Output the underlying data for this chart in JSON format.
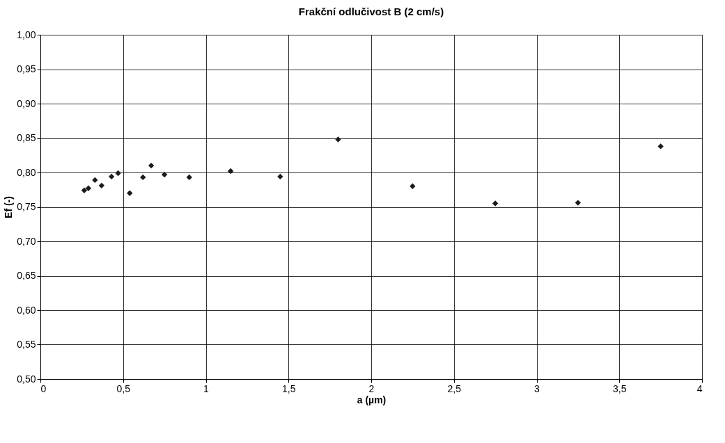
{
  "chart_data": {
    "type": "scatter",
    "title": "Frakční odlučivost B (2 cm/s)",
    "xlabel": "a (µm)",
    "ylabel": "Ef (-)",
    "x": [
      0.265,
      0.29,
      0.33,
      0.37,
      0.43,
      0.47,
      0.54,
      0.62,
      0.67,
      0.75,
      0.9,
      1.15,
      1.45,
      1.8,
      2.25,
      2.75,
      3.25,
      3.75
    ],
    "series": [
      {
        "color": "#1a1a1a",
        "values": [
          0.774,
          0.777,
          0.789,
          0.781,
          0.794,
          0.799,
          0.77,
          0.793,
          0.81,
          0.797,
          0.793,
          0.802,
          0.794,
          0.848,
          0.78,
          0.755,
          0.756,
          0.838
        ]
      }
    ],
    "xlim": [
      0,
      4
    ],
    "xticks": [
      {
        "value": 0,
        "label": "0"
      },
      {
        "value": 0.5,
        "label": "0,5"
      },
      {
        "value": 1,
        "label": "1"
      },
      {
        "value": 1.5,
        "label": "1,5"
      },
      {
        "value": 2,
        "label": "2"
      },
      {
        "value": 2.5,
        "label": "2,5"
      },
      {
        "value": 3,
        "label": "3"
      },
      {
        "value": 3.5,
        "label": "3,5"
      },
      {
        "value": 4,
        "label": "4"
      }
    ],
    "ylim": [
      0.5,
      1.0
    ],
    "yticks": [
      {
        "value": 0.5,
        "label": "0,50"
      },
      {
        "value": 0.55,
        "label": "0,55"
      },
      {
        "value": 0.6,
        "label": "0,60"
      },
      {
        "value": 0.65,
        "label": "0,65"
      },
      {
        "value": 0.7,
        "label": "0,70"
      },
      {
        "value": 0.75,
        "label": "0,75"
      },
      {
        "value": 0.8,
        "label": "0,80"
      },
      {
        "value": 0.85,
        "label": "0,85"
      },
      {
        "value": 0.9,
        "label": "0,90"
      },
      {
        "value": 0.95,
        "label": "0,95"
      },
      {
        "value": 1.0,
        "label": "1,00"
      }
    ],
    "grid": true,
    "marker": "diamond",
    "legend": false
  }
}
